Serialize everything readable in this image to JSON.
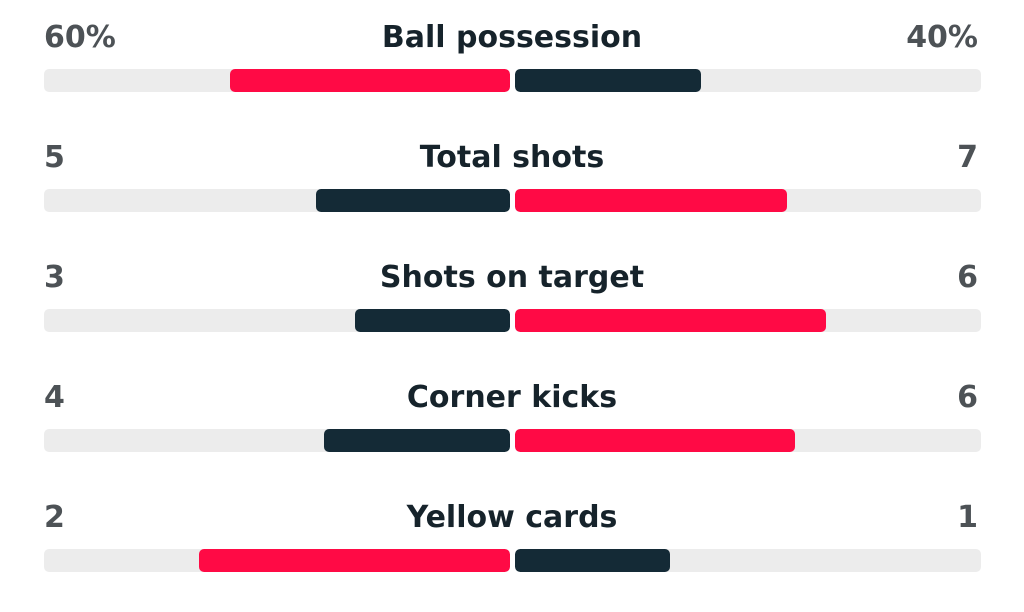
{
  "colors": {
    "leader": "#ff0a45",
    "trailer": "#142a36",
    "track": "#ececec"
  },
  "stats": [
    {
      "label": "Ball possession",
      "home_text": "60%",
      "away_text": "40%",
      "home_value": 60,
      "away_value": 40
    },
    {
      "label": "Total shots",
      "home_text": "5",
      "away_text": "7",
      "home_value": 5,
      "away_value": 7
    },
    {
      "label": "Shots on target",
      "home_text": "3",
      "away_text": "6",
      "home_value": 3,
      "away_value": 6
    },
    {
      "label": "Corner kicks",
      "home_text": "4",
      "away_text": "6",
      "home_value": 4,
      "away_value": 6
    },
    {
      "label": "Yellow cards",
      "home_text": "2",
      "away_text": "1",
      "home_value": 2,
      "away_value": 1
    }
  ]
}
